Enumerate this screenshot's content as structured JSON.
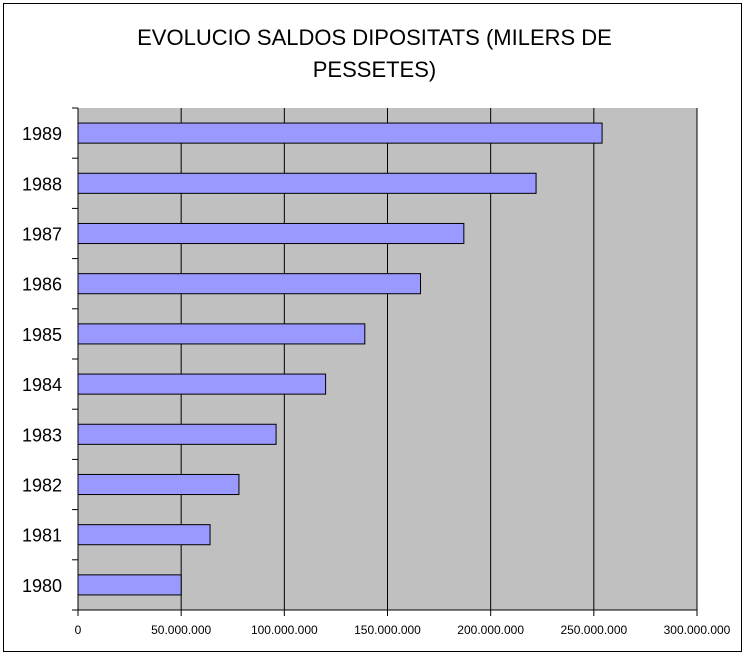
{
  "chart_data": {
    "type": "bar",
    "orientation": "horizontal",
    "title_lines": [
      "EVOLUCIO SALDOS DIPOSITATS (MILERS DE",
      "PESSETES)"
    ],
    "xlabel": "",
    "ylabel": "",
    "categories": [
      "1980",
      "1981",
      "1982",
      "1983",
      "1984",
      "1985",
      "1986",
      "1987",
      "1988",
      "1989"
    ],
    "values": [
      50000000,
      64000000,
      78000000,
      96000000,
      120000000,
      139000000,
      166000000,
      187000000,
      222000000,
      254000000
    ],
    "xlim": [
      0,
      300000000
    ],
    "x_ticks": [
      0,
      50000000,
      100000000,
      150000000,
      200000000,
      250000000,
      300000000
    ],
    "x_tick_labels": [
      "0",
      "50.000.000",
      "100.000.000",
      "150.000.000",
      "200.000.000",
      "250.000.000",
      "300.000.000"
    ],
    "grid": true,
    "legend": "none",
    "colors": {
      "bar_fill": "#9999ff",
      "bar_stroke": "#000000",
      "plot_background": "#c0c0c0",
      "grid_line": "#000000"
    }
  }
}
